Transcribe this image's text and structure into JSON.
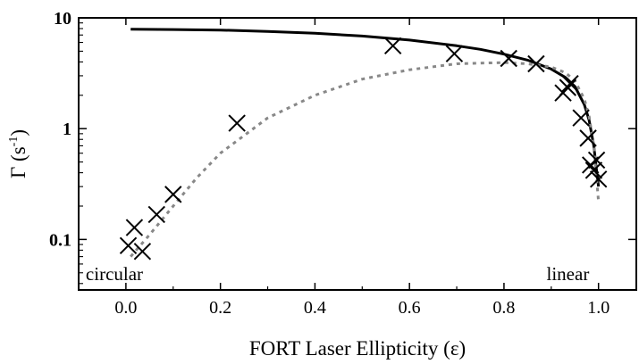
{
  "chart_data": {
    "type": "scatter",
    "xlabel": "FORT Laser Ellipticity (ε)",
    "ylabel": {
      "symbol": "Γ",
      "open": " (s",
      "sup": "-1",
      "close": ")"
    },
    "xlim": [
      -0.1,
      1.08
    ],
    "ylim": [
      0.035,
      10
    ],
    "yscale": "log",
    "grid": false,
    "x_ticks": [
      0.0,
      0.2,
      0.4,
      0.6,
      0.8,
      1.0
    ],
    "x_tick_labels": [
      "0.0",
      "0.2",
      "0.4",
      "0.6",
      "0.8",
      "1.0"
    ],
    "y_ticks": [
      0.1,
      1,
      10
    ],
    "y_tick_labels": [
      "0.1",
      "1",
      "10"
    ],
    "annotations": [
      {
        "text": "circular",
        "x": -0.085,
        "y": 0.043
      },
      {
        "text": "linear",
        "x": 0.89,
        "y": 0.043
      }
    ],
    "series": [
      {
        "kind": "markers",
        "marker": "x",
        "color": "#000000",
        "x": [
          0.005,
          0.018,
          0.035,
          0.065,
          0.1,
          0.235,
          0.565,
          0.695,
          0.81,
          0.868,
          0.925,
          0.935,
          0.94,
          0.963,
          0.978,
          0.983,
          0.99,
          0.996,
          1.0
        ],
        "y": [
          0.088,
          0.128,
          0.078,
          0.168,
          0.255,
          1.12,
          5.6,
          4.75,
          4.3,
          3.85,
          2.1,
          2.35,
          2.55,
          1.25,
          0.82,
          0.47,
          0.42,
          0.52,
          0.35
        ]
      },
      {
        "kind": "line",
        "style": "solid",
        "color": "#000000",
        "x": [
          0.01,
          0.1,
          0.2,
          0.3,
          0.4,
          0.5,
          0.6,
          0.7,
          0.75,
          0.8,
          0.85,
          0.9,
          0.93,
          0.95,
          0.97,
          0.98,
          0.99,
          0.995,
          1.0
        ],
        "y": [
          7.9,
          7.85,
          7.75,
          7.55,
          7.25,
          6.85,
          6.3,
          5.6,
          5.2,
          4.7,
          4.15,
          3.45,
          2.9,
          2.4,
          1.65,
          1.2,
          0.7,
          0.45,
          0.3
        ]
      },
      {
        "kind": "line",
        "style": "dotted",
        "color": "#888888",
        "x": [
          0.01,
          0.05,
          0.1,
          0.15,
          0.2,
          0.3,
          0.4,
          0.5,
          0.6,
          0.7,
          0.8,
          0.85,
          0.9,
          0.93,
          0.95,
          0.97,
          0.98,
          0.99,
          1.0
        ],
        "y": [
          0.07,
          0.11,
          0.2,
          0.36,
          0.6,
          1.25,
          2.0,
          2.8,
          3.4,
          3.85,
          3.95,
          3.85,
          3.6,
          3.2,
          2.7,
          1.85,
          1.3,
          0.7,
          0.22
        ]
      }
    ]
  }
}
